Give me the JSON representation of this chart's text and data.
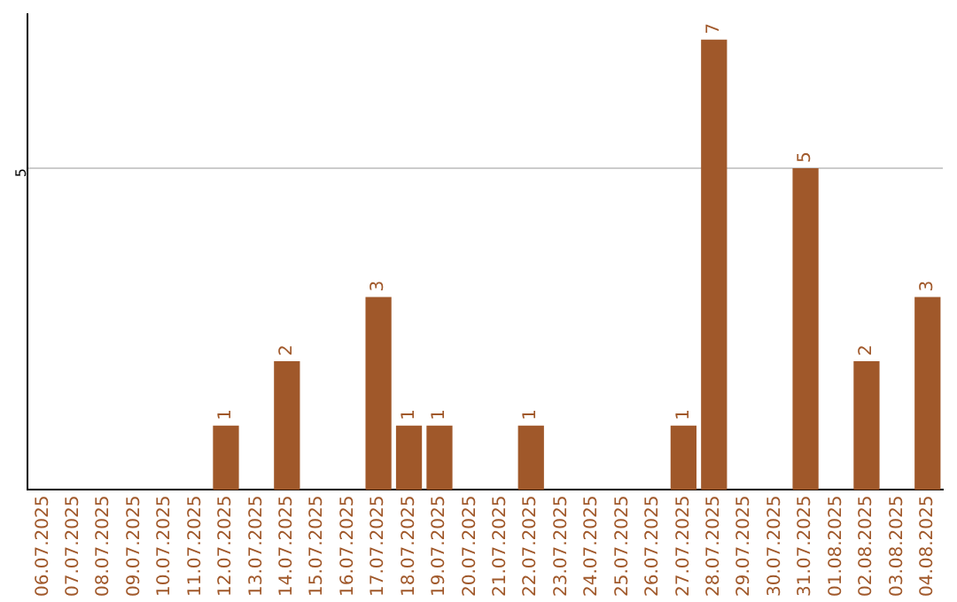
{
  "chart_data": {
    "type": "bar",
    "categories": [
      "06.07.2025",
      "07.07.2025",
      "08.07.2025",
      "09.07.2025",
      "10.07.2025",
      "11.07.2025",
      "12.07.2025",
      "13.07.2025",
      "14.07.2025",
      "15.07.2025",
      "16.07.2025",
      "17.07.2025",
      "18.07.2025",
      "19.07.2025",
      "20.07.2025",
      "21.07.2025",
      "22.07.2025",
      "23.07.2025",
      "24.07.2025",
      "25.07.2025",
      "26.07.2025",
      "27.07.2025",
      "28.07.2025",
      "29.07.2025",
      "30.07.2025",
      "31.07.2025",
      "01.08.2025",
      "02.08.2025",
      "03.08.2025",
      "04.08.2025"
    ],
    "values": [
      0,
      0,
      0,
      0,
      0,
      0,
      1,
      0,
      2,
      0,
      0,
      3,
      1,
      1,
      0,
      0,
      1,
      0,
      0,
      0,
      0,
      1,
      7,
      0,
      0,
      5,
      0,
      2,
      0,
      3
    ],
    "value_labels": [
      null,
      null,
      null,
      null,
      null,
      null,
      "1",
      null,
      "2",
      null,
      null,
      "3",
      "1",
      "1",
      null,
      null,
      "1",
      null,
      null,
      null,
      null,
      "1",
      "7",
      null,
      null,
      "5",
      null,
      "2",
      null,
      "3"
    ],
    "color": "#a0582a",
    "ylim": [
      0,
      7.4
    ],
    "yticks": [
      5
    ],
    "grid": "y"
  }
}
